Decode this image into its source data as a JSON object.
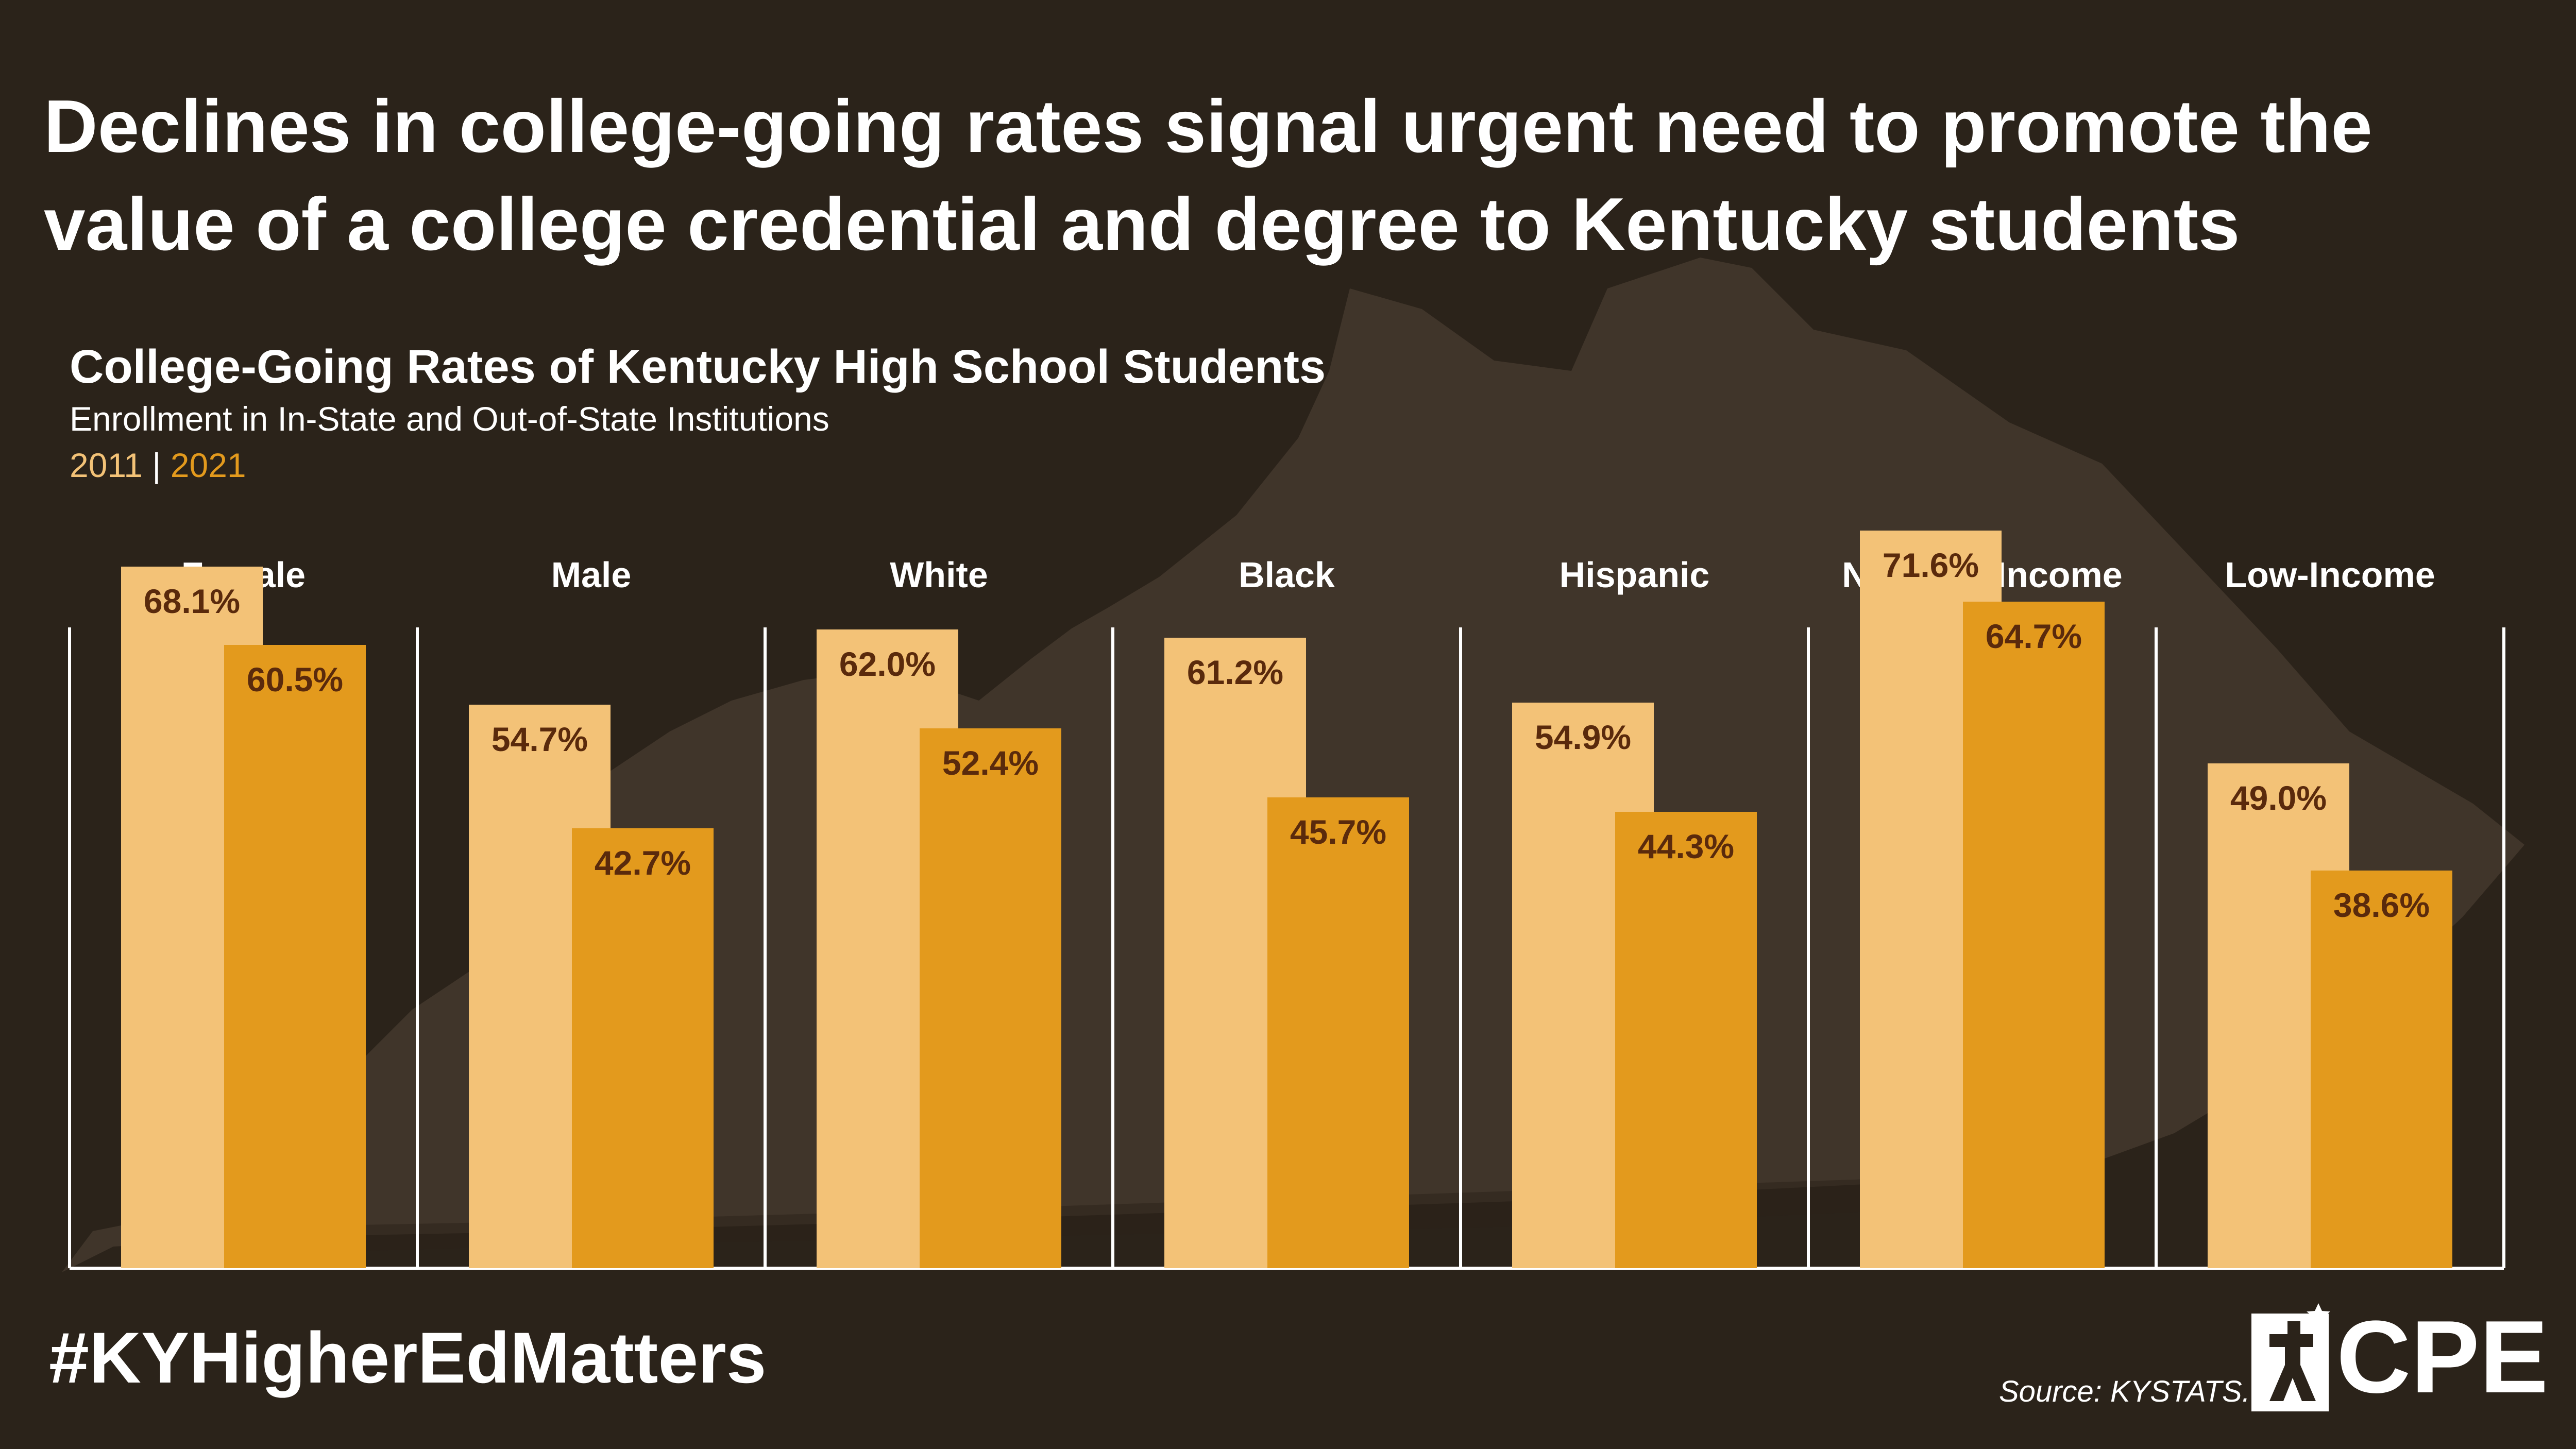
{
  "headline": "Declines in college-going rates signal urgent need to promote the value of a college credential and degree to Kentucky students",
  "hashtag": "#KYHigherEdMatters",
  "source": "Source: KYSTATS.",
  "logo_text": "CPE",
  "colors": {
    "background": "#2b231a",
    "map_silhouette": "#40352a",
    "series_2011": "#f3c277",
    "series_2021": "#e39a1d",
    "value_label": "#5a2a0c",
    "text": "#ffffff"
  },
  "chart_data": {
    "type": "bar",
    "title": "College-Going Rates of Kentucky High School Students",
    "subtitle": "Enrollment in In-State and Out-of-State Institutions",
    "legend_separator": "|",
    "categories": [
      "Female",
      "Male",
      "White",
      "Black",
      "Hispanic",
      "Not Low-Income",
      "Low-Income"
    ],
    "series": [
      {
        "name": "2011",
        "values": [
          68.1,
          54.7,
          62.0,
          61.2,
          54.9,
          71.6,
          49.0
        ],
        "labels": [
          "68.1%",
          "54.7%",
          "62.0%",
          "61.2%",
          "54.9%",
          "71.6%",
          "49.0%"
        ]
      },
      {
        "name": "2021",
        "values": [
          60.5,
          42.7,
          52.4,
          45.7,
          44.3,
          64.7,
          38.6
        ],
        "labels": [
          "60.5%",
          "42.7%",
          "52.4%",
          "45.7%",
          "44.3%",
          "64.7%",
          "38.6%"
        ]
      }
    ],
    "ylim": [
      0,
      100
    ],
    "grid": false,
    "legend_placement": "top-left, under subtitle"
  }
}
